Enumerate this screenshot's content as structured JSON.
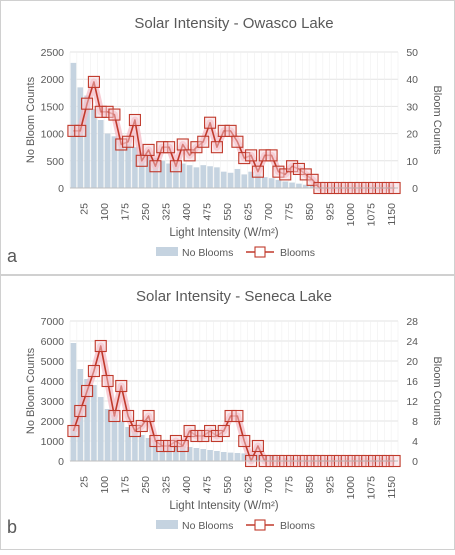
{
  "chart_data": [
    {
      "type": "bar+line",
      "panel_label": "a",
      "title": "Solar Intensity - Owasco Lake",
      "xlabel": "Light Intensity (W/m²)",
      "ylabel_left": "No Bloom Counts",
      "ylabel_right": "Bloom Counts",
      "ylim_left": [
        0,
        2500
      ],
      "ylim_right": [
        0,
        50
      ],
      "yticks_left": [
        "0",
        "500",
        "1000",
        "1500",
        "2000",
        "2500"
      ],
      "yticks_right": [
        "0",
        "10",
        "20",
        "30",
        "40",
        "50"
      ],
      "x": [
        25,
        50,
        75,
        100,
        125,
        150,
        175,
        200,
        225,
        250,
        275,
        300,
        325,
        350,
        375,
        400,
        425,
        450,
        475,
        500,
        525,
        550,
        575,
        600,
        625,
        650,
        675,
        700,
        725,
        750,
        775,
        800,
        825,
        850,
        875,
        900,
        925,
        950,
        975,
        1000,
        1025,
        1050,
        1075,
        1100,
        1125,
        1150,
        1175,
        1200
      ],
      "x_tick_labels": [
        "25",
        "100",
        "175",
        "250",
        "325",
        "400",
        "475",
        "550",
        "625",
        "700",
        "775",
        "850",
        "925",
        "1000",
        "1075",
        "1150"
      ],
      "series": [
        {
          "name": "No Blooms",
          "type": "bar",
          "axis": "left",
          "color": "#c5d3e0",
          "values": [
            2300,
            1850,
            1700,
            1450,
            1250,
            1000,
            950,
            850,
            800,
            750,
            650,
            600,
            550,
            500,
            450,
            420,
            450,
            420,
            380,
            420,
            400,
            380,
            300,
            280,
            350,
            250,
            300,
            250,
            200,
            180,
            150,
            120,
            100,
            80,
            60,
            40,
            20,
            10,
            5,
            5,
            2,
            2,
            1,
            1,
            1,
            1,
            0,
            0
          ]
        },
        {
          "name": "Blooms",
          "type": "line",
          "axis": "right",
          "color": "#c0392b",
          "values": [
            21,
            21,
            31,
            39,
            28,
            28,
            27,
            16,
            17,
            25,
            10,
            14,
            8,
            15,
            15,
            8,
            16,
            12,
            15,
            17,
            24,
            15,
            21,
            21,
            17,
            11,
            12,
            6,
            12,
            12,
            6,
            5,
            8,
            7,
            5,
            3,
            0,
            0,
            0,
            0,
            0,
            0,
            0,
            0,
            0,
            0,
            0,
            0
          ]
        }
      ],
      "legend": [
        "No Blooms",
        "Blooms"
      ],
      "legend_position": "bottom"
    },
    {
      "type": "bar+line",
      "panel_label": "b",
      "title": "Solar Intensity - Seneca Lake",
      "xlabel": "Light Intensity (W/m²)",
      "ylabel_left": "No Bloom Counts",
      "ylabel_right": "Bloom Counts",
      "ylim_left": [
        0,
        7000
      ],
      "ylim_right": [
        0,
        28
      ],
      "yticks_left": [
        "0",
        "1000",
        "2000",
        "3000",
        "4000",
        "5000",
        "6000",
        "7000"
      ],
      "yticks_right": [
        "0",
        "4",
        "8",
        "12",
        "16",
        "20",
        "24",
        "28"
      ],
      "x": [
        25,
        50,
        75,
        100,
        125,
        150,
        175,
        200,
        225,
        250,
        275,
        300,
        325,
        350,
        375,
        400,
        425,
        450,
        475,
        500,
        525,
        550,
        575,
        600,
        625,
        650,
        675,
        700,
        725,
        750,
        775,
        800,
        825,
        850,
        875,
        900,
        925,
        950,
        975,
        1000,
        1025,
        1050,
        1075,
        1100,
        1125,
        1150,
        1175,
        1200
      ],
      "x_tick_labels": [
        "25",
        "100",
        "175",
        "250",
        "325",
        "400",
        "475",
        "550",
        "625",
        "700",
        "775",
        "850",
        "925",
        "1000",
        "1075",
        "1150"
      ],
      "series": [
        {
          "name": "No Blooms",
          "type": "bar",
          "axis": "left",
          "color": "#c5d3e0",
          "values": [
            5900,
            4600,
            4100,
            3800,
            3200,
            2600,
            2300,
            2000,
            1700,
            1500,
            1300,
            1150,
            1050,
            950,
            850,
            800,
            750,
            700,
            650,
            600,
            550,
            500,
            450,
            420,
            400,
            380,
            350,
            320,
            280,
            250,
            200,
            150,
            120,
            100,
            80,
            60,
            40,
            30,
            20,
            15,
            10,
            8,
            5,
            4,
            3,
            2,
            1,
            1
          ]
        },
        {
          "name": "Blooms",
          "type": "line",
          "axis": "right",
          "color": "#c0392b",
          "values": [
            6,
            10,
            14,
            18,
            23,
            16,
            9,
            15,
            9,
            6,
            7,
            9,
            4,
            3,
            3,
            4,
            3,
            6,
            5,
            5,
            6,
            5,
            6,
            9,
            9,
            4,
            0,
            3,
            0,
            0,
            0,
            0,
            0,
            0,
            0,
            0,
            0,
            0,
            0,
            0,
            0,
            0,
            0,
            0,
            0,
            0,
            0,
            0
          ]
        }
      ],
      "legend": [
        "No Blooms",
        "Blooms"
      ],
      "legend_position": "bottom"
    }
  ]
}
